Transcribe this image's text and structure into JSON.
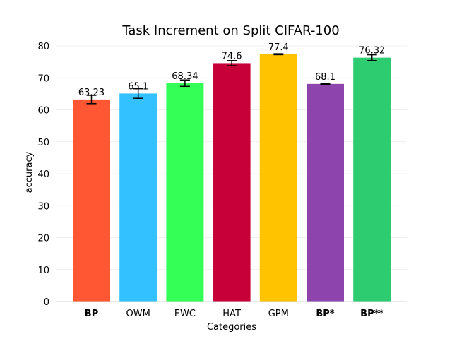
{
  "chart_data": {
    "type": "bar",
    "title": "Task Increment on Split CIFAR-100",
    "xlabel": "Categories",
    "ylabel": "accuracy",
    "ylim": [
      0,
      80
    ],
    "yticks": [
      0,
      10,
      20,
      30,
      40,
      50,
      60,
      70,
      80
    ],
    "grid": true,
    "categories": [
      "BP",
      "OWM",
      "EWC",
      "HAT",
      "GPM",
      "BP*",
      "BP**"
    ],
    "bold_categories": [
      "BP",
      "BP*",
      "BP**"
    ],
    "values": [
      63.23,
      65.1,
      68.34,
      74.6,
      77.4,
      68.1,
      76.32
    ],
    "value_labels": [
      "63.23",
      "65.1",
      "68.34",
      "74.6",
      "77.4",
      "68.1",
      "76.32"
    ],
    "errors": [
      1.3,
      1.5,
      1.0,
      0.8,
      0.15,
      0.1,
      0.9
    ],
    "colors": [
      "#ff5733",
      "#33c1ff",
      "#33ff57",
      "#c70039",
      "#ffc300",
      "#8e44ad",
      "#2ecc71"
    ]
  }
}
